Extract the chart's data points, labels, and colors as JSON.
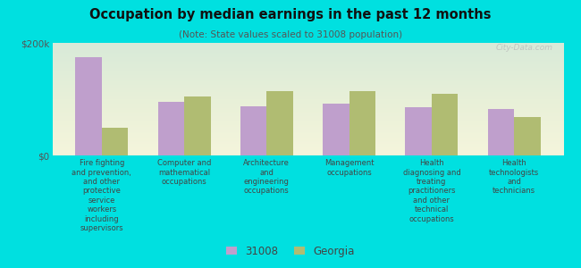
{
  "title": "Occupation by median earnings in the past 12 months",
  "subtitle": "(Note: State values scaled to 31008 population)",
  "background_color": "#00e0e0",
  "categories": [
    "Fire fighting\nand prevention,\nand other\nprotective\nservice\nworkers\nincluding\nsupervisors",
    "Computer and\nmathematical\noccupations",
    "Architecture\nand\nengineering\noccupations",
    "Management\noccupations",
    "Health\ndiagnosing and\ntreating\npractitioners\nand other\ntechnical\noccupations",
    "Health\ntechnologists\nand\ntechnicians"
  ],
  "values_31008": [
    175000,
    95000,
    88000,
    92000,
    85000,
    83000
  ],
  "values_georgia": [
    50000,
    105000,
    115000,
    115000,
    110000,
    68000
  ],
  "color_31008": "#bf9fcc",
  "color_georgia": "#b0bc72",
  "ylim": [
    0,
    200000
  ],
  "yticks": [
    0,
    200000
  ],
  "ytick_labels": [
    "$0",
    "$200k"
  ],
  "legend_31008": "31008",
  "legend_georgia": "Georgia",
  "watermark": "City-Data.com",
  "bar_width": 0.32
}
